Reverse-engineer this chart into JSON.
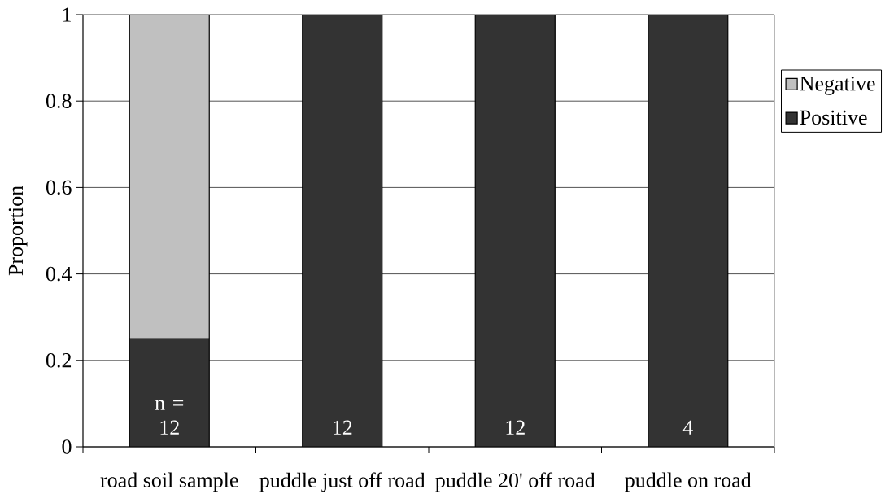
{
  "chart_data": {
    "type": "bar",
    "stacked": true,
    "ylabel": "Proportion",
    "categories": [
      "road soil sample",
      "puddle just off road",
      "puddle 20' off road",
      "puddle on road"
    ],
    "series": [
      {
        "name": "Positive",
        "color": "#333333",
        "values": [
          0.25,
          1,
          1,
          1
        ]
      },
      {
        "name": "Negative",
        "color": "#c0c0c0",
        "values": [
          0.75,
          0,
          0,
          0
        ]
      }
    ],
    "ylim": [
      0,
      1
    ],
    "yticks": [
      0,
      0.2,
      0.4,
      0.6,
      0.8,
      1
    ],
    "grid": "y",
    "legend": "right",
    "annotations": [
      "n = 12",
      "12",
      "12",
      "4"
    ]
  }
}
